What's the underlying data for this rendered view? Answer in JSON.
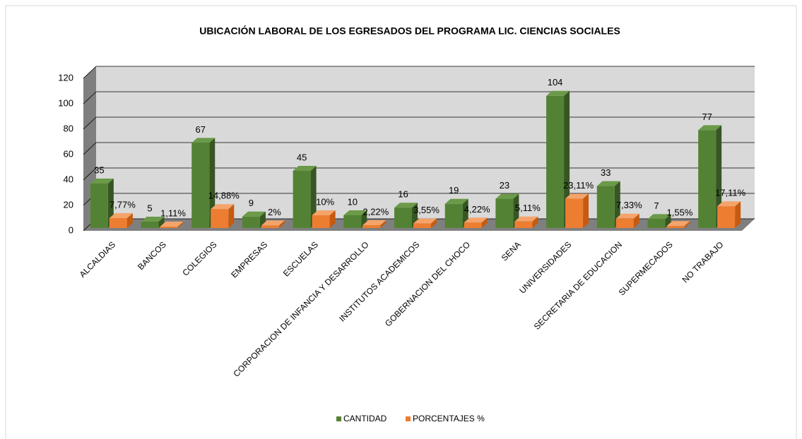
{
  "chart_data": {
    "type": "bar3d",
    "title": "UBICACIÓN LABORAL DE LOS EGRESADOS DEL PROGRAMA LIC. CIENCIAS SOCIALES",
    "categories": [
      "ALCALDIAS",
      "BANCOS",
      "COLEGIOS",
      "EMPRESAS",
      "ESCUELAS",
      "CORPORACION DE INFANCIA Y DESARROLLO",
      "INSTITUTOS ACADEMICOS",
      "GOBERNACION DEL CHOCO",
      "SENA",
      "UNIVERSIDADES",
      "SECRETARIA DE EDUCACION",
      "SUPERMECADOS",
      "NO TRABAJO"
    ],
    "series": [
      {
        "name": "CANTIDAD",
        "color": "#548235",
        "values": [
          35,
          5,
          67,
          9,
          45,
          10,
          16,
          19,
          23,
          104,
          33,
          7,
          77
        ]
      },
      {
        "name": "PORCENTAJES %",
        "color": "#ed7d31",
        "values": [
          7.77,
          1.11,
          14.88,
          2,
          10,
          2.22,
          3.55,
          4.22,
          5.11,
          23.11,
          7.33,
          1.55,
          17.11
        ],
        "value_labels": [
          "7,77%",
          "1,11%",
          "14,88%",
          "2%",
          "10%",
          "2,22%",
          "3,55%",
          "4,22%",
          "5,11%",
          "23,11%",
          "7,33%",
          "1,55%",
          "17,11%"
        ]
      }
    ],
    "ylim": [
      0,
      120
    ],
    "yticks": [
      0,
      20,
      40,
      60,
      80,
      100,
      120
    ],
    "grid": true,
    "legend": "bottom"
  }
}
